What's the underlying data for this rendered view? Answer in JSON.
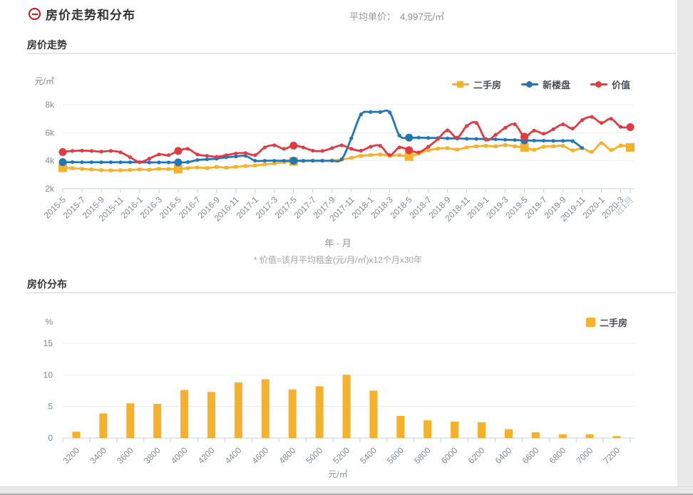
{
  "header": {
    "title": "房价走势和分布",
    "avg_price_label": "平均单价：",
    "avg_price_value": "4,997元/㎡"
  },
  "trend": {
    "section_title": "房价走势"
  },
  "dist": {
    "section_title": "房价分布"
  },
  "colors": {
    "secondhand_yellow": "#F6B029",
    "new_blue": "#2176B6",
    "value_red": "#E03B43",
    "accent_red": "#C9161E",
    "axis_line": "#C5D1DD",
    "grid_line": "#EBEEF2",
    "axis_text": "#808A94",
    "axis_text_faint": "#B4BCC5"
  },
  "chart_data": [
    {
      "type": "line",
      "title": "房价走势",
      "y_unit": "元/㎡",
      "xlabel": "年 - 月",
      "footnote": "* 价值=该月平均租金(元/月/㎡)x12个月x30年",
      "ylim": [
        2000,
        8000
      ],
      "y_ticks": [
        {
          "label": "8k",
          "value": 8000
        },
        {
          "label": "6k",
          "value": 6000
        },
        {
          "label": "4k",
          "value": 4000
        },
        {
          "label": "2k",
          "value": 2000
        }
      ],
      "x_labels": [
        "2015-5",
        "2015-7",
        "2015-9",
        "2015-11",
        "2016-1",
        "2016-3",
        "2016-5",
        "2016-7",
        "2016-9",
        "2016-11",
        "2017-1",
        "2017-3",
        "2017-5",
        "2017-7",
        "2017-9",
        "2017-11",
        "2018-1",
        "2018-3",
        "2018-5",
        "2018-7",
        "2018-9",
        "2018-11",
        "2019-1",
        "2019-3",
        "2019-5",
        "2019-7",
        "2019-9",
        "2019-11",
        "2020-1",
        "2020-3",
        "近1月"
      ],
      "points_per_label": 2,
      "point_count": 60,
      "legend_position": "top-right",
      "grid": true,
      "series": [
        {
          "name": "二手房",
          "color": "#F6B029",
          "symbol": "square",
          "emphasis": [
            0,
            12,
            24,
            36,
            48,
            59
          ],
          "values": [
            3500,
            3470,
            3420,
            3380,
            3330,
            3310,
            3320,
            3340,
            3380,
            3350,
            3420,
            3400,
            3400,
            3470,
            3520,
            3480,
            3560,
            3500,
            3560,
            3620,
            3660,
            3740,
            3800,
            3900,
            3950,
            3980,
            4000,
            4000,
            4020,
            4100,
            4200,
            4350,
            4400,
            4450,
            4350,
            4400,
            4300,
            4500,
            4740,
            4860,
            4900,
            4800,
            4950,
            5030,
            5060,
            5030,
            5120,
            5030,
            4950,
            4780,
            5000,
            5030,
            5060,
            4740,
            4900,
            4630,
            5250,
            4770,
            5080,
            4950
          ]
        },
        {
          "name": "新楼盘",
          "color": "#2176B6",
          "symbol": "circle",
          "emphasis": [
            0,
            12,
            24,
            36,
            48
          ],
          "values": [
            3900,
            3900,
            3890,
            3890,
            3890,
            3890,
            3890,
            3890,
            3890,
            3880,
            3880,
            3880,
            3880,
            3900,
            4050,
            4100,
            4150,
            4250,
            4300,
            4350,
            4000,
            4000,
            4000,
            4000,
            4000,
            4000,
            4000,
            4000,
            4000,
            4100,
            5600,
            7300,
            7480,
            7480,
            7450,
            5800,
            5650,
            5650,
            5630,
            5620,
            5600,
            5590,
            5570,
            5560,
            5550,
            5530,
            5500,
            5480,
            5450,
            5440,
            5430,
            5420,
            5420,
            5400,
            4900,
            null,
            null,
            null,
            null,
            null
          ]
        },
        {
          "name": "价值",
          "color": "#E03B43",
          "symbol": "circle",
          "emphasis": [
            0,
            12,
            24,
            36,
            48,
            59
          ],
          "values": [
            4620,
            4700,
            4720,
            4700,
            4650,
            4700,
            4600,
            4250,
            3900,
            4150,
            4450,
            4400,
            4700,
            4850,
            4450,
            4350,
            4280,
            4400,
            4520,
            4550,
            4400,
            4950,
            5100,
            4850,
            5080,
            4950,
            4720,
            4700,
            4900,
            5100,
            4850,
            4720,
            5000,
            5070,
            4400,
            4950,
            4750,
            4600,
            5000,
            5550,
            6170,
            5650,
            6480,
            6700,
            5500,
            5850,
            6350,
            6600,
            5720,
            6150,
            5930,
            6250,
            6600,
            6300,
            6900,
            7130,
            6700,
            7000,
            6420,
            6400
          ]
        }
      ]
    },
    {
      "type": "bar",
      "title": "房价分布",
      "y_unit": "%",
      "xlabel": "元/㎡",
      "ylim": [
        0,
        15
      ],
      "y_ticks": [
        0,
        5,
        10,
        15
      ],
      "legend_position": "top-right",
      "grid": true,
      "categories": [
        "3200",
        "3400",
        "3600",
        "3800",
        "4000",
        "4200",
        "4400",
        "4600",
        "4800",
        "5000",
        "5200",
        "5400",
        "5600",
        "5800",
        "6000",
        "6200",
        "6400",
        "6600",
        "6800",
        "7000",
        "7200"
      ],
      "series": [
        {
          "name": "二手房",
          "color": "#F6B029",
          "values": [
            1.0,
            3.9,
            5.5,
            5.4,
            7.6,
            7.3,
            8.8,
            9.3,
            7.7,
            8.2,
            10.0,
            7.5,
            3.5,
            2.8,
            2.6,
            2.5,
            1.4,
            0.9,
            0.6,
            0.6,
            0.3
          ]
        }
      ]
    }
  ]
}
